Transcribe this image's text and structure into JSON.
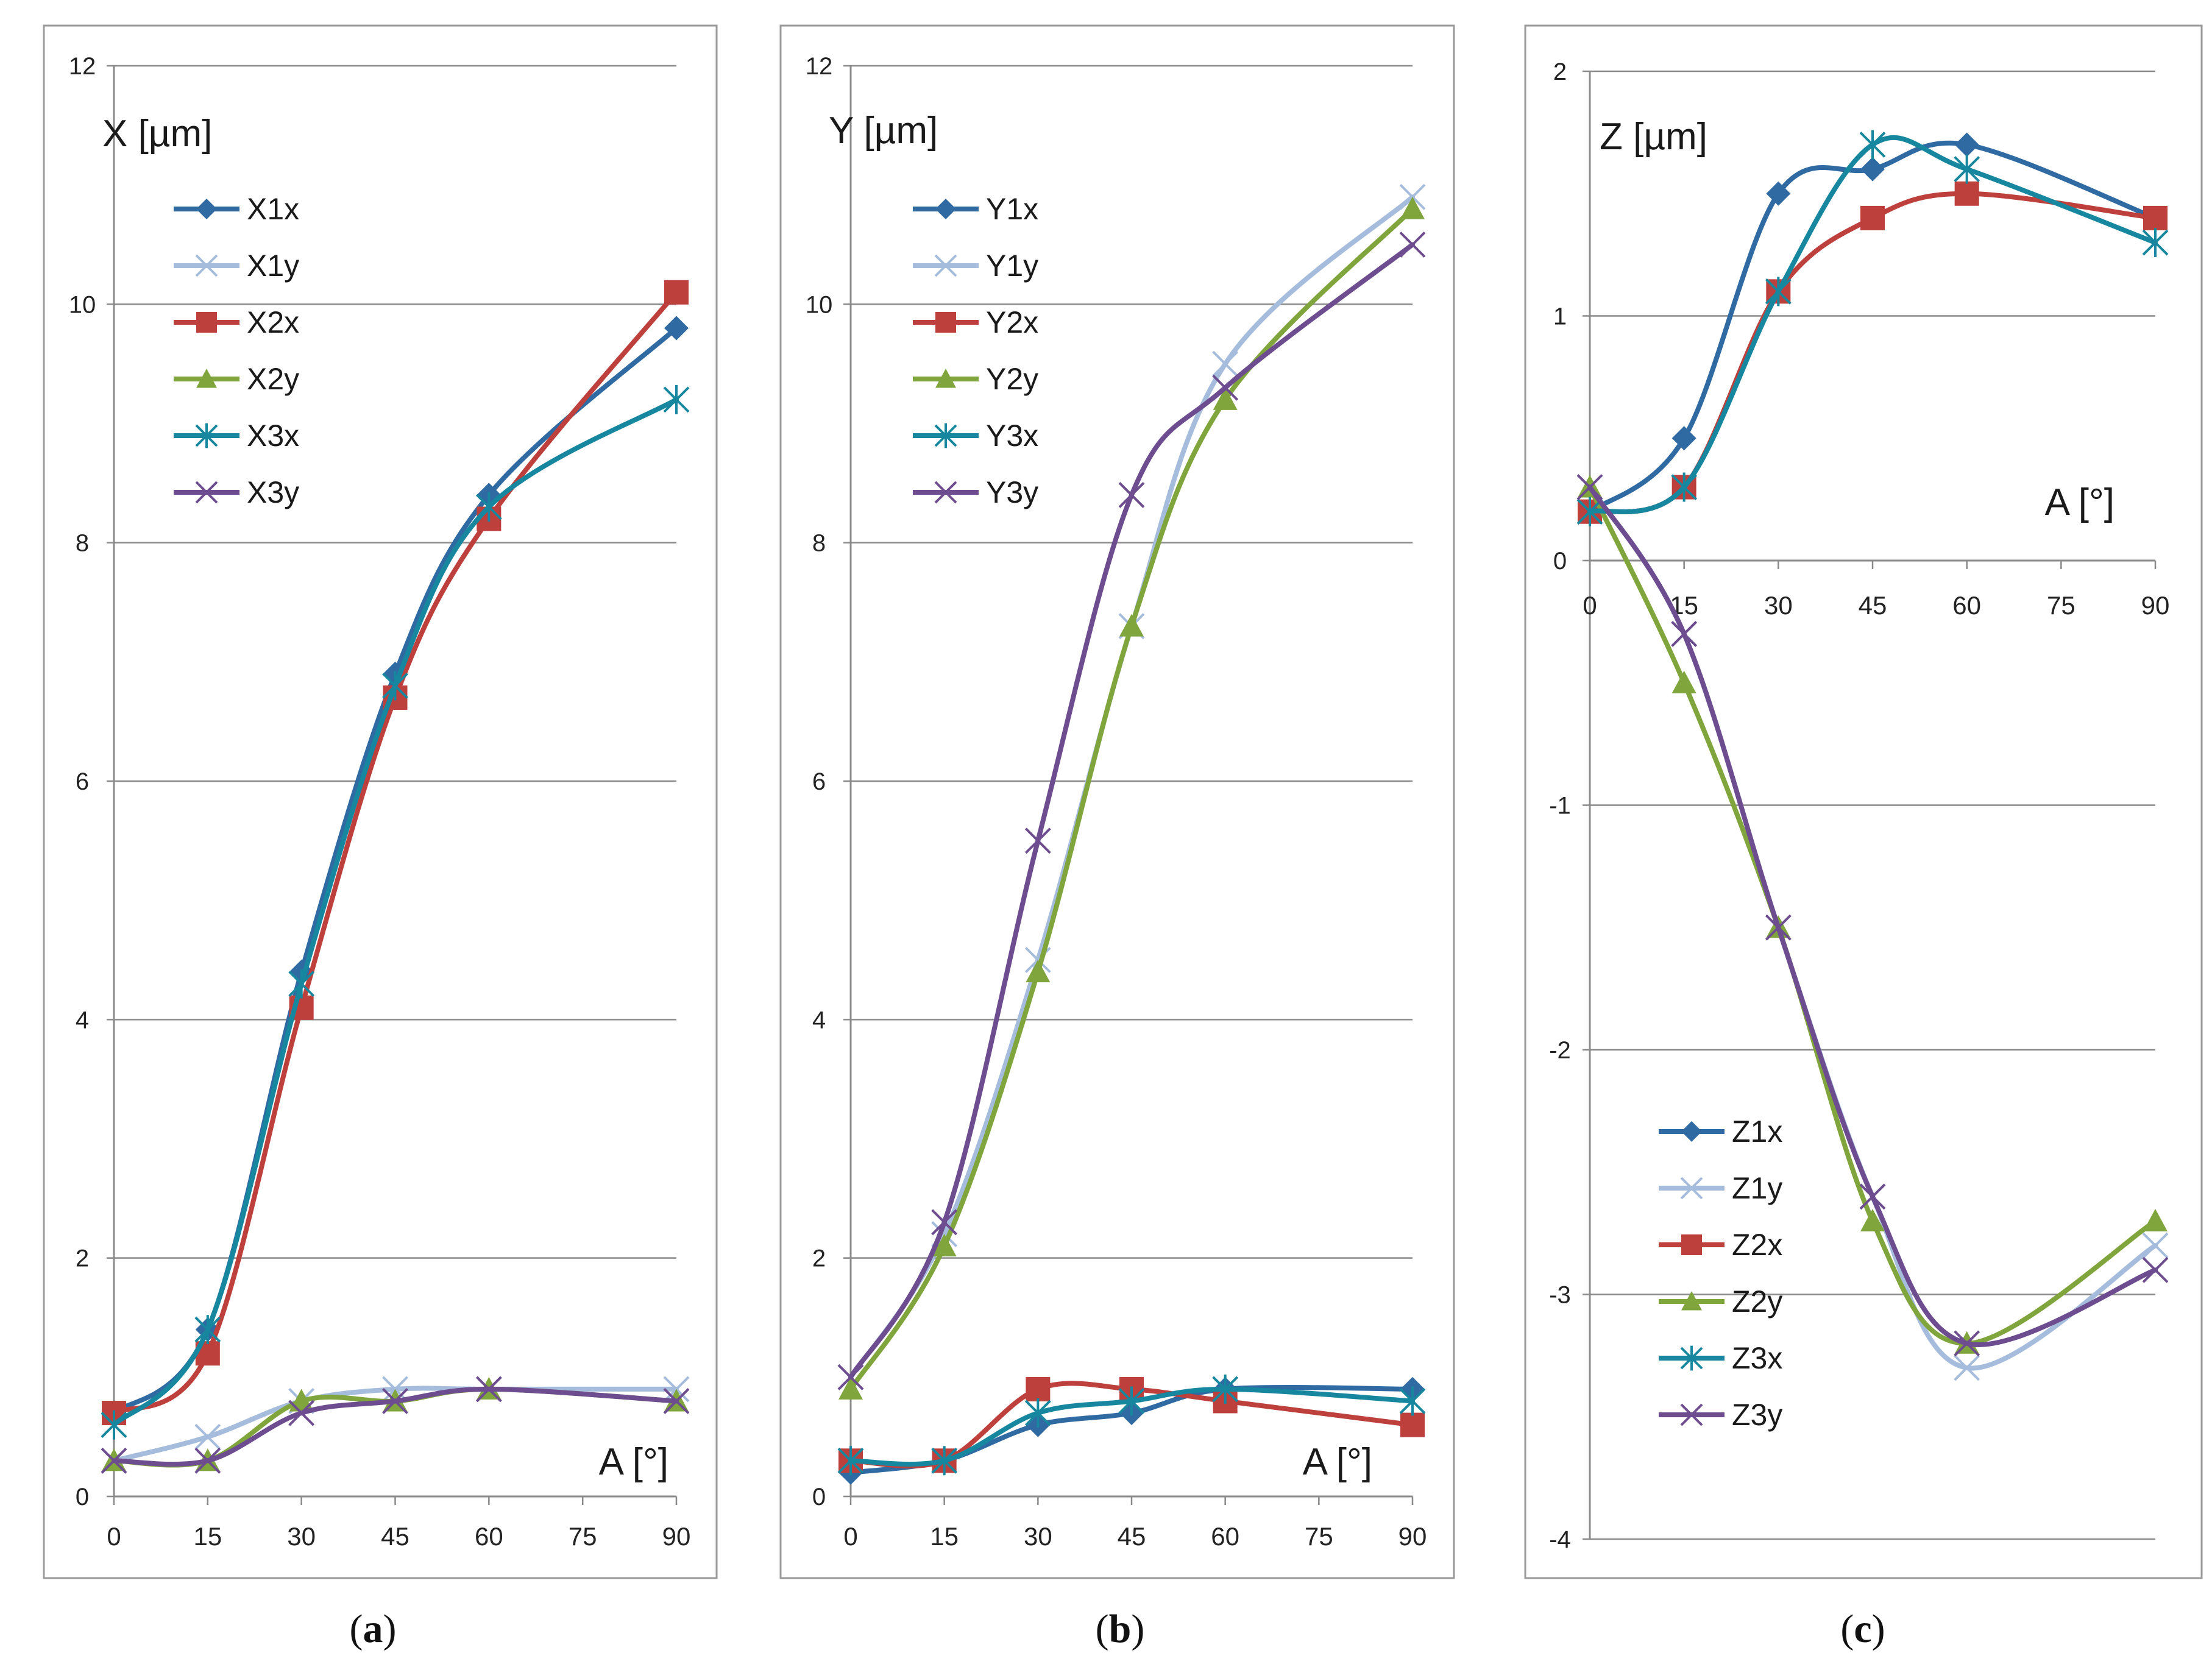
{
  "colors": {
    "s1x": "#2f6aa3",
    "s1y": "#a5bcdc",
    "s2x": "#be403c",
    "s2y": "#7fa53c",
    "s3x": "#16879e",
    "s3y": "#6d4c8f",
    "grid": "#8a8a8a",
    "frame": "#9a9a9a"
  },
  "chart_data": [
    {
      "type": "line",
      "panel_caption": {
        "open": "(",
        "letter": "a",
        "close": ")"
      },
      "ylabel": "X [µm]",
      "xlabel": "A [°]",
      "xlim": [
        0,
        90
      ],
      "ylim": [
        0,
        12
      ],
      "x_ticks": [
        "0",
        "15",
        "30",
        "45",
        "60",
        "75",
        "90"
      ],
      "y_ticks": [
        "0",
        "2",
        "4",
        "6",
        "8",
        "10",
        "12"
      ],
      "x": [
        0,
        15,
        30,
        45,
        60,
        90
      ],
      "legend": "top-left",
      "series": [
        {
          "name": "X1x",
          "key": "s1x",
          "marker": "diamond",
          "values": [
            0.7,
            1.4,
            4.4,
            6.9,
            8.4,
            9.8
          ]
        },
        {
          "name": "X1y",
          "key": "s1y",
          "marker": "x",
          "values": [
            0.3,
            0.5,
            0.8,
            0.9,
            0.9,
            0.9
          ]
        },
        {
          "name": "X2x",
          "key": "s2x",
          "marker": "square",
          "values": [
            0.7,
            1.2,
            4.1,
            6.7,
            8.2,
            10.1
          ]
        },
        {
          "name": "X2y",
          "key": "s2y",
          "marker": "triangle",
          "values": [
            0.3,
            0.3,
            0.8,
            0.8,
            0.9,
            0.8
          ]
        },
        {
          "name": "X3x",
          "key": "s3x",
          "marker": "asterisk",
          "values": [
            0.6,
            1.4,
            4.3,
            6.8,
            8.3,
            9.2
          ]
        },
        {
          "name": "X3y",
          "key": "s3y",
          "marker": "x",
          "values": [
            0.3,
            0.3,
            0.7,
            0.8,
            0.9,
            0.8
          ]
        }
      ]
    },
    {
      "type": "line",
      "panel_caption": {
        "open": "(",
        "letter": "b",
        "close": ")"
      },
      "ylabel": "Y [µm]",
      "xlabel": "A [°]",
      "xlim": [
        0,
        90
      ],
      "ylim": [
        0,
        12
      ],
      "x_ticks": [
        "0",
        "15",
        "30",
        "45",
        "60",
        "75",
        "90"
      ],
      "y_ticks": [
        "0",
        "2",
        "4",
        "6",
        "8",
        "10",
        "12"
      ],
      "x": [
        0,
        15,
        30,
        45,
        60,
        90
      ],
      "legend": "top-left",
      "series": [
        {
          "name": "Y1x",
          "key": "s1x",
          "marker": "diamond",
          "values": [
            0.2,
            0.3,
            0.6,
            0.7,
            0.9,
            0.9
          ]
        },
        {
          "name": "Y1y",
          "key": "s1y",
          "marker": "x",
          "values": [
            1.0,
            2.2,
            4.5,
            7.3,
            9.5,
            10.9
          ]
        },
        {
          "name": "Y2x",
          "key": "s2x",
          "marker": "square",
          "values": [
            0.3,
            0.3,
            0.9,
            0.9,
            0.8,
            0.6
          ]
        },
        {
          "name": "Y2y",
          "key": "s2y",
          "marker": "triangle",
          "values": [
            0.9,
            2.1,
            4.4,
            7.3,
            9.2,
            10.8
          ]
        },
        {
          "name": "Y3x",
          "key": "s3x",
          "marker": "asterisk",
          "values": [
            0.3,
            0.3,
            0.7,
            0.8,
            0.9,
            0.8
          ]
        },
        {
          "name": "Y3y",
          "key": "s3y",
          "marker": "x",
          "values": [
            1.0,
            2.3,
            5.5,
            8.4,
            9.3,
            10.5
          ]
        }
      ]
    },
    {
      "type": "line",
      "panel_caption": {
        "open": "(",
        "letter": "c",
        "close": ")"
      },
      "ylabel": "Z [µm]",
      "xlabel": "A [°]",
      "xlim": [
        0,
        90
      ],
      "ylim": [
        -4,
        2
      ],
      "x_ticks": [
        "0",
        "15",
        "30",
        "45",
        "60",
        "75",
        "90"
      ],
      "y_ticks": [
        "-4",
        "-3",
        "-2",
        "-1",
        "0",
        "1",
        "2"
      ],
      "x": [
        0,
        15,
        30,
        45,
        60,
        90
      ],
      "legend": "bottom-left",
      "series": [
        {
          "name": "Z1x",
          "key": "s1x",
          "marker": "diamond",
          "values": [
            0.2,
            0.5,
            1.5,
            1.6,
            1.7,
            1.4
          ]
        },
        {
          "name": "Z1y",
          "key": "s1y",
          "marker": "x",
          "values": [
            0.3,
            -0.3,
            -1.5,
            -2.6,
            -3.3,
            -2.8
          ]
        },
        {
          "name": "Z2x",
          "key": "s2x",
          "marker": "square",
          "values": [
            0.2,
            0.3,
            1.1,
            1.4,
            1.5,
            1.4
          ]
        },
        {
          "name": "Z2y",
          "key": "s2y",
          "marker": "triangle",
          "values": [
            0.3,
            -0.5,
            -1.5,
            -2.7,
            -3.2,
            -2.7
          ]
        },
        {
          "name": "Z3x",
          "key": "s3x",
          "marker": "asterisk",
          "values": [
            0.2,
            0.3,
            1.1,
            1.7,
            1.6,
            1.3
          ]
        },
        {
          "name": "Z3y",
          "key": "s3y",
          "marker": "x",
          "values": [
            0.3,
            -0.3,
            -1.5,
            -2.6,
            -3.2,
            -2.9
          ]
        }
      ]
    }
  ]
}
